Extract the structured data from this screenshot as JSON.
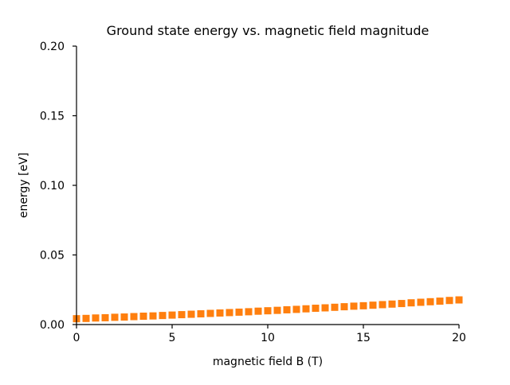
{
  "chart_data": {
    "type": "scatter",
    "title": "Ground state energy vs. magnetic field magnitude",
    "xlabel": "magnetic field B (T)",
    "ylabel": "energy [eV]",
    "xlim": [
      0,
      20
    ],
    "ylim": [
      0,
      0.2
    ],
    "xticks": [
      0,
      5,
      10,
      15,
      20
    ],
    "xtick_labels": [
      "0",
      "5",
      "10",
      "15",
      "20"
    ],
    "yticks": [
      0,
      0.05,
      0.1,
      0.15,
      0.2
    ],
    "ytick_labels": [
      "0.00",
      "0.05",
      "0.10",
      "0.15",
      "0.20"
    ],
    "grid": false,
    "marker": "square",
    "color": "#ff7f0e",
    "x": [
      0,
      0.5,
      1,
      1.5,
      2,
      2.5,
      3,
      3.5,
      4,
      4.5,
      5,
      5.5,
      6,
      6.5,
      7,
      7.5,
      8,
      8.5,
      9,
      9.5,
      10,
      10.5,
      11,
      11.5,
      12,
      12.5,
      13,
      13.5,
      14,
      14.5,
      15,
      15.5,
      16,
      16.5,
      17,
      17.5,
      18,
      18.5,
      19,
      19.5,
      20
    ],
    "y": [
      0.0042,
      0.0044,
      0.0047,
      0.0049,
      0.0052,
      0.0054,
      0.0057,
      0.006,
      0.0062,
      0.0065,
      0.0068,
      0.0071,
      0.0074,
      0.0077,
      0.008,
      0.0083,
      0.0086,
      0.0089,
      0.0092,
      0.0096,
      0.0099,
      0.0102,
      0.0106,
      0.0109,
      0.0113,
      0.0117,
      0.012,
      0.0124,
      0.0128,
      0.0132,
      0.0135,
      0.0139,
      0.0143,
      0.0147,
      0.0151,
      0.0156,
      0.016,
      0.0164,
      0.0168,
      0.0173,
      0.0177
    ]
  }
}
